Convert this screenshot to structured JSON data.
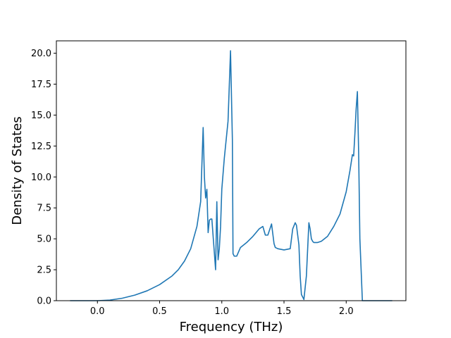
{
  "chart_data": {
    "type": "line",
    "title": "",
    "xlabel": "Frequency (THz)",
    "ylabel": "Density of States",
    "xlim": [
      -0.33,
      2.48
    ],
    "ylim": [
      0,
      21.0
    ],
    "xticks": [
      0.0,
      0.5,
      1.0,
      1.5,
      2.0
    ],
    "xtick_labels": [
      "0.0",
      "0.5",
      "1.0",
      "1.5",
      "2.0"
    ],
    "yticks": [
      0.0,
      2.5,
      5.0,
      7.5,
      10.0,
      12.5,
      15.0,
      17.5,
      20.0
    ],
    "ytick_labels": [
      "0.0",
      "2.5",
      "5.0",
      "7.5",
      "10.0",
      "12.5",
      "15.0",
      "17.5",
      "20.0"
    ],
    "grid": false,
    "color": "#1f77b4",
    "series": [
      {
        "x": [
          -0.22,
          0.0,
          0.1,
          0.2,
          0.3,
          0.4,
          0.5,
          0.6,
          0.65,
          0.7,
          0.75,
          0.8,
          0.83,
          0.85,
          0.86,
          0.87,
          0.88,
          0.89,
          0.9,
          0.91,
          0.92,
          0.95,
          0.96,
          0.97,
          0.98,
          0.99,
          1.0,
          1.02,
          1.05,
          1.07,
          1.085,
          1.09,
          1.1,
          1.12,
          1.15,
          1.2,
          1.25,
          1.3,
          1.33,
          1.35,
          1.37,
          1.4,
          1.42,
          1.43,
          1.45,
          1.5,
          1.55,
          1.57,
          1.59,
          1.6,
          1.62,
          1.63,
          1.64,
          1.66,
          1.68,
          1.7,
          1.71,
          1.72,
          1.73,
          1.74,
          1.75,
          1.77,
          1.8,
          1.85,
          1.9,
          1.95,
          2.0,
          2.03,
          2.05,
          2.06,
          2.07,
          2.08,
          2.09,
          2.1,
          2.11,
          2.13,
          2.15,
          2.2,
          2.37
        ],
        "y": [
          0.0,
          0.0,
          0.05,
          0.2,
          0.45,
          0.8,
          1.3,
          2.0,
          2.5,
          3.2,
          4.2,
          6.0,
          8.0,
          14.0,
          10.0,
          8.3,
          9.0,
          5.5,
          6.5,
          6.6,
          6.6,
          2.5,
          8.0,
          3.3,
          4.2,
          6.0,
          9.0,
          11.5,
          14.5,
          20.2,
          13.0,
          3.8,
          3.6,
          3.6,
          4.3,
          4.7,
          5.2,
          5.8,
          6.0,
          5.3,
          5.3,
          6.2,
          4.6,
          4.3,
          4.2,
          4.1,
          4.2,
          5.8,
          6.3,
          6.1,
          4.5,
          2.0,
          0.5,
          0.1,
          2.0,
          6.3,
          5.8,
          5.0,
          4.8,
          4.7,
          4.7,
          4.7,
          4.8,
          5.2,
          6.0,
          7.0,
          8.8,
          10.5,
          11.8,
          11.7,
          13.5,
          15.5,
          16.9,
          12.0,
          5.0,
          0.0,
          0.0,
          0.0,
          0.0
        ]
      }
    ]
  }
}
